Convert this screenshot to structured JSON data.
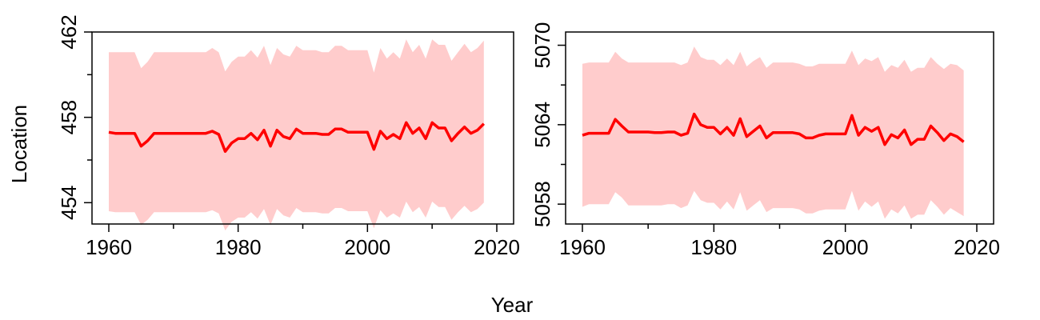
{
  "ylabel": "Location",
  "xlabel": "Year",
  "colors": {
    "line": "#ff0000",
    "band": "#ffcccc",
    "frame": "#000000"
  },
  "chart_data": [
    {
      "type": "line",
      "xlabel": "Year",
      "ylabel": "Location",
      "xlim": [
        1960,
        2020
      ],
      "ylim": [
        453.0,
        462.0
      ],
      "xticks": [
        1960,
        1980,
        2000,
        2020
      ],
      "xtick_labels": [
        "1960",
        "1980",
        "2000",
        "2020"
      ],
      "yticks": [
        454,
        458,
        462
      ],
      "ytick_labels": [
        "454",
        "458",
        "462"
      ],
      "x": [
        1960,
        1961,
        1962,
        1963,
        1964,
        1965,
        1966,
        1967,
        1968,
        1969,
        1970,
        1971,
        1972,
        1973,
        1974,
        1975,
        1976,
        1977,
        1978,
        1979,
        1980,
        1981,
        1982,
        1983,
        1984,
        1985,
        1986,
        1987,
        1988,
        1989,
        1990,
        1991,
        1992,
        1993,
        1994,
        1995,
        1996,
        1997,
        1998,
        1999,
        2000,
        2001,
        2002,
        2003,
        2004,
        2005,
        2006,
        2007,
        2008,
        2009,
        2010,
        2011,
        2012,
        2013,
        2014,
        2015,
        2016,
        2017,
        2018
      ],
      "series": [
        {
          "values": [
            457.3,
            457.25,
            457.25,
            457.25,
            457.25,
            456.65,
            456.9,
            457.25,
            457.25,
            457.25,
            457.25,
            457.25,
            457.25,
            457.25,
            457.25,
            457.25,
            457.35,
            457.2,
            456.4,
            456.8,
            457.0,
            457.0,
            457.25,
            456.95,
            457.4,
            456.65,
            457.4,
            457.1,
            457.0,
            457.45,
            457.25,
            457.25,
            457.25,
            457.2,
            457.2,
            457.45,
            457.45,
            457.3,
            457.3,
            457.3,
            457.3,
            456.5,
            457.35,
            457.0,
            457.2,
            457.0,
            457.75,
            457.25,
            457.5,
            457.0,
            457.75,
            457.5,
            457.5,
            456.9,
            457.25,
            457.55,
            457.25,
            457.4,
            457.7
          ]
        },
        {
          "name": "upper",
          "values": [
            461.05,
            461.05,
            461.05,
            461.05,
            461.05,
            460.3,
            460.6,
            461.05,
            461.05,
            461.05,
            461.05,
            461.05,
            461.05,
            461.05,
            461.05,
            461.05,
            461.25,
            461.05,
            460.15,
            460.6,
            460.85,
            460.85,
            461.15,
            460.8,
            461.35,
            460.45,
            461.25,
            460.95,
            460.85,
            461.35,
            461.15,
            461.15,
            461.15,
            461.05,
            461.05,
            461.35,
            461.35,
            461.15,
            461.15,
            461.15,
            461.15,
            460.1,
            461.25,
            460.75,
            461.05,
            460.75,
            461.65,
            461.05,
            461.4,
            460.75,
            461.65,
            461.4,
            461.4,
            460.65,
            461.05,
            461.45,
            461.05,
            461.25,
            461.6
          ]
        },
        {
          "name": "lower",
          "values": [
            453.6,
            453.55,
            453.55,
            453.55,
            453.55,
            452.95,
            453.2,
            453.55,
            453.55,
            453.55,
            453.55,
            453.55,
            453.55,
            453.55,
            453.55,
            453.55,
            453.65,
            453.5,
            452.7,
            453.1,
            453.3,
            453.3,
            453.55,
            453.25,
            453.7,
            452.95,
            453.7,
            453.4,
            453.3,
            453.75,
            453.55,
            453.55,
            453.55,
            453.5,
            453.5,
            453.75,
            453.75,
            453.6,
            453.6,
            453.6,
            453.6,
            452.8,
            453.65,
            453.3,
            453.5,
            453.3,
            454.05,
            453.55,
            453.8,
            453.3,
            454.05,
            453.8,
            453.8,
            453.2,
            453.55,
            453.85,
            453.55,
            453.7,
            454.0
          ]
        }
      ]
    },
    {
      "type": "line",
      "xlabel": "Year",
      "ylabel": "",
      "xlim": [
        1960,
        2020
      ],
      "ylim": [
        5056.5,
        5071.0
      ],
      "xticks": [
        1960,
        1980,
        2000,
        2020
      ],
      "xtick_labels": [
        "1960",
        "1980",
        "2000",
        "2020"
      ],
      "yticks": [
        5058,
        5064,
        5070
      ],
      "ytick_labels": [
        "5058",
        "5064",
        "5070"
      ],
      "x": [
        1960,
        1961,
        1962,
        1963,
        1964,
        1965,
        1966,
        1967,
        1968,
        1969,
        1970,
        1971,
        1972,
        1973,
        1974,
        1975,
        1976,
        1977,
        1978,
        1979,
        1980,
        1981,
        1982,
        1983,
        1984,
        1985,
        1986,
        1987,
        1988,
        1989,
        1990,
        1991,
        1992,
        1993,
        1994,
        1995,
        1996,
        1997,
        1998,
        1999,
        2000,
        2001,
        2002,
        2003,
        2004,
        2005,
        2006,
        2007,
        2008,
        2009,
        2010,
        2011,
        2012,
        2013,
        2014,
        2015,
        2016,
        2017,
        2018
      ],
      "series": [
        {
          "values": [
            5063.2,
            5063.35,
            5063.35,
            5063.35,
            5063.35,
            5064.4,
            5063.9,
            5063.45,
            5063.45,
            5063.45,
            5063.45,
            5063.4,
            5063.4,
            5063.45,
            5063.45,
            5063.2,
            5063.35,
            5064.8,
            5064.0,
            5063.8,
            5063.8,
            5063.3,
            5063.8,
            5063.2,
            5064.45,
            5063.1,
            5063.5,
            5063.9,
            5063.0,
            5063.4,
            5063.4,
            5063.4,
            5063.4,
            5063.3,
            5063.0,
            5063.0,
            5063.2,
            5063.3,
            5063.3,
            5063.3,
            5063.3,
            5064.7,
            5063.2,
            5063.8,
            5063.5,
            5063.8,
            5062.5,
            5063.25,
            5063.0,
            5063.6,
            5062.5,
            5062.9,
            5062.9,
            5063.9,
            5063.4,
            5062.8,
            5063.3,
            5063.1,
            5062.7
          ]
        },
        {
          "name": "upper",
          "values": [
            5068.6,
            5068.7,
            5068.7,
            5068.7,
            5068.7,
            5069.5,
            5069.0,
            5068.7,
            5068.7,
            5068.7,
            5068.7,
            5068.7,
            5068.7,
            5068.7,
            5068.7,
            5068.5,
            5068.7,
            5069.9,
            5069.1,
            5068.9,
            5068.9,
            5068.5,
            5069.0,
            5068.5,
            5069.5,
            5068.4,
            5068.8,
            5069.1,
            5068.3,
            5068.7,
            5068.7,
            5068.7,
            5068.7,
            5068.6,
            5068.4,
            5068.4,
            5068.6,
            5068.6,
            5068.6,
            5068.6,
            5068.6,
            5069.6,
            5068.5,
            5069.0,
            5068.8,
            5069.1,
            5068.0,
            5068.5,
            5068.3,
            5068.9,
            5068.0,
            5068.3,
            5068.3,
            5069.1,
            5068.6,
            5068.2,
            5068.6,
            5068.5,
            5068.1
          ]
        },
        {
          "name": "lower",
          "values": [
            5057.8,
            5058.0,
            5058.0,
            5058.0,
            5058.0,
            5058.9,
            5058.5,
            5057.9,
            5057.9,
            5057.9,
            5057.9,
            5057.9,
            5057.9,
            5058.0,
            5058.0,
            5057.7,
            5057.9,
            5059.0,
            5058.3,
            5058.1,
            5058.1,
            5057.6,
            5058.2,
            5057.6,
            5058.9,
            5057.5,
            5057.9,
            5058.3,
            5057.4,
            5057.7,
            5057.7,
            5057.7,
            5057.7,
            5057.6,
            5057.3,
            5057.3,
            5057.5,
            5057.6,
            5057.6,
            5057.6,
            5057.6,
            5059.0,
            5057.5,
            5058.2,
            5057.8,
            5058.2,
            5056.9,
            5057.6,
            5057.3,
            5057.9,
            5056.9,
            5057.2,
            5057.2,
            5058.3,
            5057.8,
            5057.2,
            5057.7,
            5057.4,
            5057.1
          ]
        }
      ]
    }
  ]
}
